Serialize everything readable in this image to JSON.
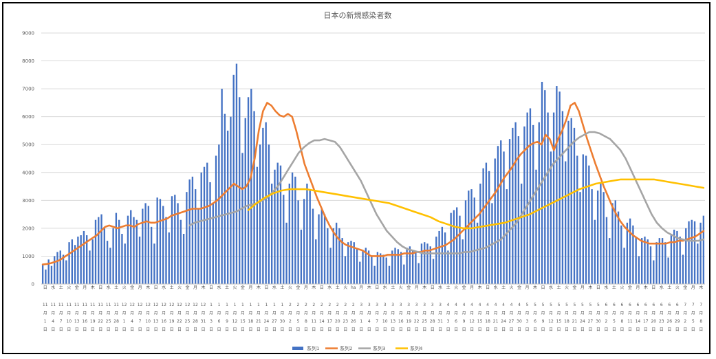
{
  "chart_data": {
    "type": "bar+line",
    "title": "日本の新規感染者数",
    "xlabel": "",
    "ylabel": "",
    "ylim": [
      0,
      9000
    ],
    "yticks": [
      0,
      1000,
      2000,
      3000,
      4000,
      5000,
      6000,
      7000,
      8000,
      9000
    ],
    "grid": true,
    "legend_position": "bottom",
    "x_labels": [
      {
        "weekday": "日",
        "month": "11",
        "day": "1"
      },
      {
        "weekday": "水",
        "month": "11",
        "day": "4"
      },
      {
        "weekday": "土",
        "month": "11",
        "day": "7"
      },
      {
        "weekday": "火",
        "month": "11",
        "day": "10"
      },
      {
        "weekday": "金",
        "month": "11",
        "day": "13"
      },
      {
        "weekday": "月",
        "month": "11",
        "day": "16"
      },
      {
        "weekday": "木",
        "month": "11",
        "day": "19"
      },
      {
        "weekday": "日",
        "month": "11",
        "day": "22"
      },
      {
        "weekday": "水",
        "month": "11",
        "day": "25"
      },
      {
        "weekday": "土",
        "month": "11",
        "day": "28"
      },
      {
        "weekday": "火",
        "month": "12",
        "day": "1"
      },
      {
        "weekday": "金",
        "month": "12",
        "day": "4"
      },
      {
        "weekday": "月",
        "month": "12",
        "day": "7"
      },
      {
        "weekday": "木",
        "month": "12",
        "day": "10"
      },
      {
        "weekday": "日",
        "month": "12",
        "day": "13"
      },
      {
        "weekday": "水",
        "month": "12",
        "day": "16"
      },
      {
        "weekday": "土",
        "month": "12",
        "day": "19"
      },
      {
        "weekday": "火",
        "month": "12",
        "day": "22"
      },
      {
        "weekday": "金",
        "month": "12",
        "day": "25"
      },
      {
        "weekday": "月",
        "month": "12",
        "day": "28"
      },
      {
        "weekday": "木",
        "month": "12",
        "day": "31"
      },
      {
        "weekday": "日",
        "month": "1",
        "day": "3"
      },
      {
        "weekday": "水",
        "month": "1",
        "day": "6"
      },
      {
        "weekday": "土",
        "month": "1",
        "day": "9"
      },
      {
        "weekday": "火",
        "month": "1",
        "day": "12"
      },
      {
        "weekday": "金",
        "month": "1",
        "day": "15"
      },
      {
        "weekday": "月",
        "month": "1",
        "day": "18"
      },
      {
        "weekday": "木",
        "month": "1",
        "day": "21"
      },
      {
        "weekday": "日",
        "month": "1",
        "day": "24"
      },
      {
        "weekday": "水",
        "month": "1",
        "day": "27"
      },
      {
        "weekday": "土",
        "month": "1",
        "day": "30"
      },
      {
        "weekday": "火",
        "month": "2",
        "day": "2"
      },
      {
        "weekday": "金",
        "month": "2",
        "day": "5"
      },
      {
        "weekday": "月",
        "month": "2",
        "day": "8"
      },
      {
        "weekday": "木",
        "month": "2",
        "day": "11"
      },
      {
        "weekday": "日",
        "month": "2",
        "day": "14"
      },
      {
        "weekday": "水",
        "month": "2",
        "day": "17"
      },
      {
        "weekday": "土",
        "month": "2",
        "day": "20"
      },
      {
        "weekday": "火",
        "month": "2",
        "day": "23"
      },
      {
        "weekday": "ha",
        "month": "2",
        "day": "26"
      },
      {
        "weekday": "月",
        "month": "3",
        "day": "1"
      },
      {
        "weekday": "木",
        "month": "3",
        "day": "4"
      },
      {
        "weekday": "日",
        "month": "3",
        "day": "7"
      },
      {
        "weekday": "水",
        "month": "3",
        "day": "10"
      },
      {
        "weekday": "土",
        "month": "3",
        "day": "13"
      },
      {
        "weekday": "火",
        "month": "3",
        "day": "16"
      },
      {
        "weekday": "金",
        "month": "3",
        "day": "19"
      },
      {
        "weekday": "月",
        "month": "3",
        "day": "22"
      },
      {
        "weekday": "木",
        "month": "3",
        "day": "25"
      },
      {
        "weekday": "日",
        "month": "3",
        "day": "28"
      },
      {
        "weekday": "水",
        "month": "3",
        "day": "31"
      },
      {
        "weekday": "土",
        "month": "4",
        "day": "3"
      },
      {
        "weekday": "火",
        "month": "4",
        "day": "6"
      },
      {
        "weekday": "金",
        "month": "4",
        "day": "9"
      },
      {
        "weekday": "月",
        "month": "4",
        "day": "12"
      },
      {
        "weekday": "木",
        "month": "4",
        "day": "15"
      },
      {
        "weekday": "日",
        "month": "4",
        "day": "18"
      },
      {
        "weekday": "水",
        "month": "4",
        "day": "21"
      },
      {
        "weekday": "土",
        "month": "4",
        "day": "24"
      },
      {
        "weekday": "火",
        "month": "4",
        "day": "27"
      },
      {
        "weekday": "金",
        "month": "4",
        "day": "30"
      },
      {
        "weekday": "月",
        "month": "5",
        "day": "3"
      },
      {
        "weekday": "木",
        "month": "5",
        "day": "6"
      },
      {
        "weekday": "日",
        "month": "5",
        "day": "9"
      },
      {
        "weekday": "水",
        "month": "5",
        "day": "12"
      },
      {
        "weekday": "土",
        "month": "5",
        "day": "15"
      },
      {
        "weekday": "火",
        "month": "5",
        "day": "18"
      },
      {
        "weekday": "金",
        "month": "5",
        "day": "21"
      },
      {
        "weekday": "月",
        "month": "5",
        "day": "24"
      },
      {
        "weekday": "木",
        "month": "5",
        "day": "27"
      },
      {
        "weekday": "日",
        "month": "5",
        "day": "30"
      },
      {
        "weekday": "水",
        "month": "6",
        "day": "2"
      },
      {
        "weekday": "土",
        "month": "6",
        "day": "5"
      },
      {
        "weekday": "火",
        "month": "6",
        "day": "8"
      },
      {
        "weekday": "金",
        "month": "6",
        "day": "11"
      },
      {
        "weekday": "月",
        "month": "6",
        "day": "14"
      },
      {
        "weekday": "木",
        "month": "6",
        "day": "17"
      },
      {
        "weekday": "日",
        "month": "6",
        "day": "20"
      },
      {
        "weekday": "水",
        "month": "6",
        "day": "23"
      },
      {
        "weekday": "土",
        "month": "6",
        "day": "26"
      },
      {
        "weekday": "火",
        "month": "6",
        "day": "29"
      },
      {
        "weekday": "金",
        "month": "7",
        "day": "2"
      },
      {
        "weekday": "月",
        "month": "7",
        "day": "5"
      },
      {
        "weekday": "木",
        "month": "7",
        "day": "8"
      }
    ],
    "day_suffix": "日",
    "month_suffix": "月",
    "series": [
      {
        "name": "系列1",
        "kind": "bar",
        "color": "#4472C4",
        "values": [
          720,
          520,
          880,
          650,
          1000,
          1150,
          1200,
          1050,
          850,
          1500,
          1600,
          1400,
          1700,
          1750,
          1900,
          1750,
          1200,
          1600,
          2300,
          2400,
          2500,
          2050,
          1550,
          1300,
          2000,
          2550,
          2300,
          1800,
          1450,
          2450,
          2650,
          2400,
          2300,
          1700,
          2700,
          2900,
          2800,
          2050,
          1450,
          3100,
          3050,
          2800,
          2400,
          1850,
          3150,
          3200,
          2900,
          2300,
          1800,
          3300,
          3750,
          3850,
          3400,
          2700,
          4000,
          4200,
          4350,
          3650,
          2900,
          4600,
          5000,
          7000,
          6100,
          5500,
          6000,
          7500,
          7900,
          6700,
          4700,
          5950,
          6700,
          7000,
          6200,
          4200,
          5000,
          5600,
          5800,
          5000,
          3600,
          4100,
          4350,
          4250,
          3200,
          2200,
          3600,
          4000,
          3850,
          3000,
          1950,
          3050,
          3600,
          3400,
          2700,
          1600,
          2500,
          2700,
          2500,
          2000,
          1300,
          2000,
          2200,
          2000,
          1650,
          1000,
          1500,
          1550,
          1500,
          1250,
          800,
          1200,
          1300,
          1200,
          1000,
          650,
          1150,
          1100,
          1050,
          950,
          650,
          1200,
          1300,
          1250,
          1150,
          700,
          1300,
          1350,
          1200,
          1150,
          750,
          1450,
          1500,
          1450,
          1350,
          900,
          1700,
          1900,
          2050,
          1850,
          1200,
          2550,
          2650,
          2750,
          2450,
          1600,
          3000,
          3350,
          3400,
          3100,
          2200,
          3600,
          4150,
          4350,
          4050,
          2900,
          4500,
          4950,
          5150,
          4750,
          3400,
          5200,
          5600,
          5800,
          5300,
          3600,
          5650,
          6150,
          6300,
          5700,
          4100,
          5800,
          7250,
          6950,
          6150,
          4750,
          6150,
          7100,
          6900,
          6200,
          4400,
          5850,
          5950,
          5600,
          4600,
          3300,
          4650,
          4600,
          4250,
          3400,
          2300,
          3350,
          3600,
          3300,
          2400,
          1650,
          2900,
          3000,
          2600,
          2100,
          1300,
          2200,
          2350,
          2100,
          1700,
          1000,
          1650,
          1700,
          1600,
          1350,
          850,
          1500,
          1650,
          1650,
          1500,
          950,
          1800,
          1950,
          1900,
          1700,
          1050,
          2000,
          2250,
          2300,
          2250,
          1450,
          2200,
          2450
        ]
      },
      {
        "name": "系列2",
        "kind": "line",
        "color": "#ED7D31",
        "values": [
          700,
          720,
          750,
          800,
          850,
          950,
          1050,
          1150,
          1250,
          1350,
          1450,
          1550,
          1650,
          1750,
          1900,
          2050,
          2100,
          2050,
          2000,
          2050,
          2100,
          2100,
          2050,
          2150,
          2200,
          2250,
          2200,
          2200,
          2250,
          2300,
          2350,
          2450,
          2500,
          2550,
          2600,
          2650,
          2700,
          2700,
          2700,
          2750,
          2800,
          2900,
          3000,
          3150,
          3300,
          3450,
          3600,
          3500,
          3400,
          3500,
          3800,
          4500,
          5500,
          6200,
          6500,
          6400,
          6200,
          6050,
          6000,
          6100,
          6000,
          5500,
          4900,
          4300,
          3900,
          3500,
          3100,
          2750,
          2400,
          2100,
          1850,
          1650,
          1500,
          1400,
          1350,
          1300,
          1250,
          1200,
          1100,
          1000,
          1000,
          1000,
          1000,
          1050,
          1050,
          1050,
          1050,
          1100,
          1100,
          1100,
          1150,
          1150,
          1200,
          1200,
          1250,
          1300,
          1350,
          1400,
          1500,
          1600,
          1750,
          1900,
          2050,
          2200,
          2350,
          2500,
          2700,
          2900,
          3100,
          3300,
          3550,
          3800,
          4000,
          4200,
          4450,
          4650,
          4800,
          4950,
          5050,
          5100,
          5000,
          5350,
          5200,
          4800,
          5200,
          5500,
          5900,
          6400,
          6500,
          6200,
          5700,
          5200,
          4750,
          4300,
          3900,
          3500,
          3150,
          2800,
          2500,
          2250,
          2050,
          1900,
          1750,
          1650,
          1550,
          1500,
          1450,
          1450,
          1450,
          1450,
          1450,
          1500,
          1500,
          1550,
          1550,
          1600,
          1650,
          1700,
          1800,
          1900
        ]
      },
      {
        "name": "系列3",
        "kind": "line",
        "color": "#A5A5A5",
        "start_index": 50,
        "values": [
          2100,
          2200,
          2250,
          2300,
          2350,
          2400,
          2450,
          2500,
          2550,
          2600,
          2700,
          2800,
          2850,
          2900,
          3000,
          3100,
          3300,
          3500,
          3800,
          4100,
          4400,
          4700,
          4900,
          5050,
          5150,
          5150,
          5200,
          5150,
          5100,
          4900,
          4600,
          4300,
          4000,
          3700,
          3300,
          2900,
          2500,
          2200,
          1900,
          1700,
          1500,
          1350,
          1250,
          1200,
          1150,
          1100,
          1100,
          1100,
          1100,
          1100,
          1100,
          1100,
          1100,
          1150,
          1150,
          1200,
          1250,
          1300,
          1400,
          1500,
          1600,
          1800,
          2000,
          2200,
          2500,
          2800,
          3100,
          3400,
          3700,
          4000,
          4300,
          4500,
          4700,
          4900,
          5100,
          5250,
          5350,
          5450,
          5450,
          5400,
          5300,
          5200,
          5000,
          4800,
          4500,
          4100,
          3700,
          3300,
          2900,
          2500,
          2200,
          2000,
          1850,
          1750,
          1650,
          1600,
          1550,
          1550,
          1550,
          1600
        ]
      },
      {
        "name": "系列4",
        "kind": "line",
        "color": "#FFC000",
        "start_index": 70,
        "values": [
          2650,
          2900,
          3100,
          3250,
          3350,
          3400,
          3400,
          3400,
          3350,
          3300,
          3250,
          3200,
          3150,
          3100,
          3050,
          3000,
          2950,
          2900,
          2800,
          2700,
          2600,
          2500,
          2400,
          2250,
          2150,
          2050,
          2000,
          2000,
          2050,
          2100,
          2150,
          2200,
          2300,
          2400,
          2500,
          2650,
          2800,
          2950,
          3100,
          3250,
          3400,
          3500,
          3600,
          3650,
          3700,
          3750,
          3750,
          3750,
          3750,
          3750,
          3700,
          3650,
          3600,
          3550,
          3500,
          3450
        ]
      }
    ]
  }
}
